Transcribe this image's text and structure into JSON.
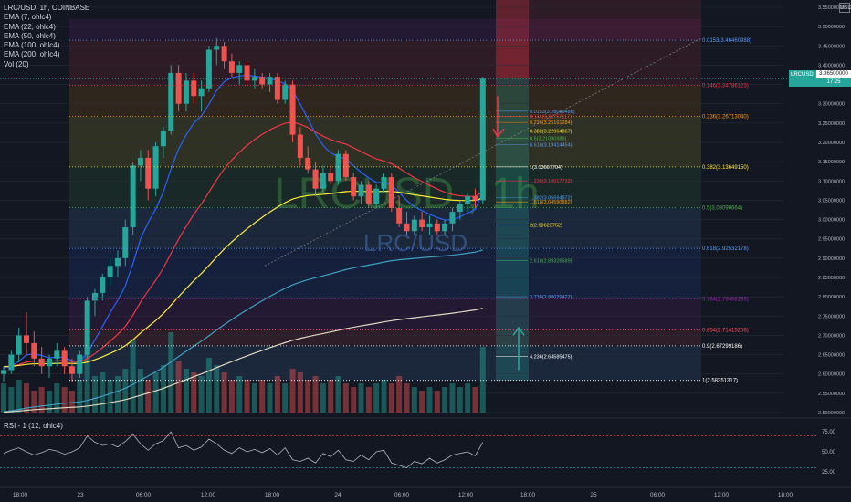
{
  "header": {
    "symbol": "LRC/USD, 1h, COINBASE",
    "indicators": [
      "EMA (7, ohlc4)",
      "EMA (22, ohlc4)",
      "EMA (50, ohlc4)",
      "EMA (100, ohlc4)",
      "EMA (200, ohlc4)",
      "Vol (20)"
    ],
    "currency": "USD"
  },
  "watermark": {
    "big": "LRCUSD , 1h",
    "small": "LRC/USD"
  },
  "badges": {
    "ticker": "LRCUSD",
    "price": "3.36500000",
    "time": "17:25"
  },
  "rsi": {
    "label": "RSI - 1 (12, ohlc4)",
    "ticks": [
      "75.00",
      "50.00",
      "25.00"
    ],
    "levels": [
      70,
      30
    ]
  },
  "colors": {
    "background": "#131722",
    "up": "#26a69a",
    "down": "#ef5350",
    "ema7": "#2962ff",
    "ema22": "#f23645",
    "ema50": "#ffeb3b",
    "ema100": "#3f9fbf",
    "ema200": "#e0d8c0"
  },
  "chart_data": {
    "type": "candlestick",
    "ylim": [
      2.5,
      3.55
    ],
    "yticks": [
      "3.55000000",
      "3.50000000",
      "3.45000000",
      "3.40000000",
      "3.35000000",
      "3.30000000",
      "3.25000000",
      "3.20000000",
      "3.15000000",
      "3.10000000",
      "3.05000000",
      "3.00000000",
      "2.95000000",
      "2.90000000",
      "2.85000000",
      "2.80000000",
      "2.75000000",
      "2.70000000",
      "2.65000000",
      "2.60000000",
      "2.55000000",
      "2.50000000"
    ],
    "xticks": [
      "18:00",
      "23",
      "06:00",
      "12:00",
      "18:00",
      "24",
      "06:00",
      "12:00",
      "18:00",
      "25",
      "06:00",
      "12:00",
      "18:00"
    ],
    "candles": [
      [
        2.6,
        2.62,
        2.58,
        2.61
      ],
      [
        2.61,
        2.66,
        2.6,
        2.65
      ],
      [
        2.65,
        2.72,
        2.63,
        2.7
      ],
      [
        2.7,
        2.76,
        2.65,
        2.68
      ],
      [
        2.68,
        2.71,
        2.62,
        2.64
      ],
      [
        2.64,
        2.67,
        2.6,
        2.62
      ],
      [
        2.62,
        2.65,
        2.59,
        2.64
      ],
      [
        2.64,
        2.68,
        2.62,
        2.66
      ],
      [
        2.66,
        2.67,
        2.6,
        2.62
      ],
      [
        2.62,
        2.64,
        2.58,
        2.6
      ],
      [
        2.6,
        2.66,
        2.59,
        2.65
      ],
      [
        2.65,
        2.8,
        2.64,
        2.79
      ],
      [
        2.79,
        2.82,
        2.75,
        2.81
      ],
      [
        2.81,
        2.86,
        2.79,
        2.85
      ],
      [
        2.85,
        2.9,
        2.83,
        2.88
      ],
      [
        2.88,
        2.92,
        2.85,
        2.9
      ],
      [
        2.9,
        3.0,
        2.88,
        2.98
      ],
      [
        2.98,
        3.15,
        2.96,
        3.14
      ],
      [
        3.14,
        3.18,
        3.1,
        3.16
      ],
      [
        3.16,
        3.18,
        3.05,
        3.08
      ],
      [
        3.08,
        3.2,
        3.06,
        3.19
      ],
      [
        3.19,
        3.24,
        3.16,
        3.23
      ],
      [
        3.23,
        3.4,
        3.22,
        3.38
      ],
      [
        3.38,
        3.4,
        3.28,
        3.3
      ],
      [
        3.3,
        3.38,
        3.28,
        3.36
      ],
      [
        3.36,
        3.38,
        3.3,
        3.32
      ],
      [
        3.32,
        3.36,
        3.28,
        3.34
      ],
      [
        3.34,
        3.45,
        3.33,
        3.44
      ],
      [
        3.44,
        3.47,
        3.4,
        3.45
      ],
      [
        3.45,
        3.46,
        3.39,
        3.41
      ],
      [
        3.41,
        3.43,
        3.37,
        3.38
      ],
      [
        3.38,
        3.41,
        3.35,
        3.4
      ],
      [
        3.4,
        3.41,
        3.35,
        3.36
      ],
      [
        3.36,
        3.39,
        3.34,
        3.37
      ],
      [
        3.37,
        3.38,
        3.34,
        3.35
      ],
      [
        3.35,
        3.38,
        3.33,
        3.37
      ],
      [
        3.37,
        3.38,
        3.3,
        3.31
      ],
      [
        3.31,
        3.36,
        3.3,
        3.35
      ],
      [
        3.35,
        3.36,
        3.2,
        3.22
      ],
      [
        3.22,
        3.24,
        3.14,
        3.16
      ],
      [
        3.16,
        3.19,
        3.12,
        3.13
      ],
      [
        3.13,
        3.15,
        3.06,
        3.08
      ],
      [
        3.08,
        3.14,
        3.07,
        3.12
      ],
      [
        3.12,
        3.14,
        3.09,
        3.1
      ],
      [
        3.1,
        3.18,
        3.09,
        3.17
      ],
      [
        3.17,
        3.18,
        3.1,
        3.11
      ],
      [
        3.11,
        3.12,
        3.05,
        3.06
      ],
      [
        3.06,
        3.1,
        3.04,
        3.09
      ],
      [
        3.09,
        3.1,
        3.03,
        3.04
      ],
      [
        3.04,
        3.09,
        3.03,
        3.08
      ],
      [
        3.08,
        3.12,
        3.07,
        3.11
      ],
      [
        3.11,
        3.12,
        3.02,
        3.03
      ],
      [
        3.03,
        3.06,
        2.98,
        2.99
      ],
      [
        2.99,
        3.02,
        2.96,
        2.97
      ],
      [
        2.97,
        3.01,
        2.96,
        3.0
      ],
      [
        3.0,
        3.02,
        2.97,
        2.98
      ],
      [
        2.98,
        3.01,
        2.96,
        2.99
      ],
      [
        2.99,
        3.0,
        2.96,
        2.97
      ],
      [
        2.97,
        3.0,
        2.96,
        2.99
      ],
      [
        2.99,
        3.03,
        2.97,
        3.02
      ],
      [
        3.02,
        3.05,
        3.0,
        3.04
      ],
      [
        3.04,
        3.07,
        3.02,
        3.06
      ],
      [
        3.06,
        3.08,
        3.03,
        3.05
      ],
      [
        3.05,
        3.37,
        3.04,
        3.365
      ]
    ],
    "volume": [
      8,
      7,
      9,
      8,
      6,
      7,
      6,
      8,
      7,
      6,
      9,
      18,
      10,
      11,
      9,
      10,
      12,
      20,
      12,
      9,
      11,
      13,
      22,
      14,
      12,
      11,
      10,
      15,
      13,
      11,
      9,
      10,
      9,
      8,
      9,
      8,
      10,
      8,
      12,
      11,
      9,
      10,
      8,
      9,
      10,
      8,
      7,
      8,
      7,
      8,
      9,
      8,
      10,
      8,
      7,
      6,
      7,
      6,
      7,
      8,
      7,
      8,
      7,
      18
    ],
    "fib": [
      {
        "label": "0.0153(3.46460988)",
        "value": 3.4646,
        "color": "#5b9cf6"
      },
      {
        "label": "0.146(3.34786123)",
        "value": 3.34786,
        "color": "#f23645"
      },
      {
        "label": "0.236(3.26713040)",
        "value": 3.26713,
        "color": "#ff9800"
      },
      {
        "label": "0.382(3.13649150)",
        "value": 3.13649,
        "color": "#ffeb3b"
      },
      {
        "label": "0.5(3.03090664)",
        "value": 3.03091,
        "color": "#4caf50"
      },
      {
        "label": "0.618(2.92532178)",
        "value": 2.92532,
        "color": "#5b9cf6"
      },
      {
        "label": "0.764(2.79468289)",
        "value": 2.79468,
        "color": "#9c27b0"
      },
      {
        "label": "0.854(2.71415206)",
        "value": 2.71415,
        "color": "#f7525f"
      },
      {
        "label": "0.9(2.67299186)",
        "value": 2.67299,
        "color": "#ffffff"
      },
      {
        "label": "1(2.58351317)",
        "value": 2.58351,
        "color": "#ffffff"
      }
    ],
    "fib_small": [
      {
        "label": "0.0153(3.28089488)",
        "value": 3.2809,
        "color": "#5b9cf6"
      },
      {
        "label": "0.146(3.26757117)",
        "value": 3.2676,
        "color": "#f23645"
      },
      {
        "label": "0.236(3.25161284)",
        "value": 3.2516,
        "color": "#ff9800"
      },
      {
        "label": "0.382(3.22964867)",
        "value": 3.2296,
        "color": "#ffeb3b"
      },
      {
        "label": "0.5(3.21090986)",
        "value": 3.2109,
        "color": "#4caf50"
      },
      {
        "label": "0.618(3.19414454)",
        "value": 3.1941,
        "color": "#5b9cf6"
      },
      {
        "label": "1(3.13667704)",
        "value": 3.13667,
        "color": "#ffffff"
      },
      {
        "label": "1.236(3.10017732)",
        "value": 3.10018,
        "color": "#f23645"
      },
      {
        "label": "1.382(3.05694872)",
        "value": 3.05695,
        "color": "#5b9cf6"
      },
      {
        "label": "1.618(3.04590882)",
        "value": 3.04591,
        "color": "#ff9800"
      },
      {
        "label": "2(2.98623752)",
        "value": 2.98624,
        "color": "#ffeb3b"
      },
      {
        "label": "2.618(2.89326589)",
        "value": 2.89327,
        "color": "#4caf50"
      },
      {
        "label": "3.736(2.80029427)",
        "value": 2.80029,
        "color": "#5b9cf6"
      },
      {
        "label": "4.236(2.64585475)",
        "value": 2.64585,
        "color": "#ffffff"
      }
    ],
    "rsi": [
      48,
      52,
      55,
      50,
      46,
      49,
      53,
      51,
      47,
      50,
      55,
      70,
      62,
      58,
      60,
      56,
      63,
      72,
      60,
      52,
      60,
      64,
      75,
      55,
      58,
      52,
      56,
      66,
      60,
      52,
      48,
      55,
      50,
      53,
      49,
      54,
      46,
      55,
      40,
      38,
      42,
      36,
      48,
      44,
      52,
      40,
      38,
      46,
      40,
      50,
      52,
      36,
      33,
      30,
      38,
      35,
      42,
      36,
      40,
      46,
      48,
      50,
      45,
      62
    ]
  }
}
